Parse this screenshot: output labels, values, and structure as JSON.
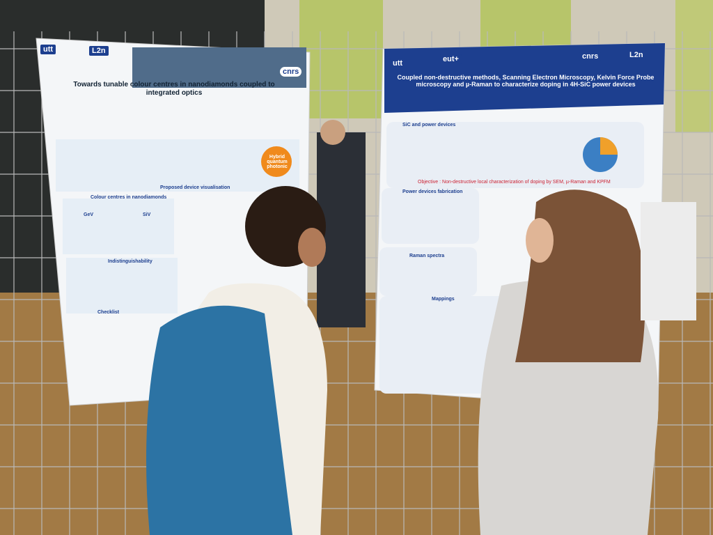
{
  "posters": [
    {
      "logos": [
        "utt",
        "L2n",
        "cnrs"
      ],
      "title": "Towards tunable colour centres in nanodiamonds coupled to integrated optics",
      "sections": [
        "Proposed device visualisation",
        "Hybrid quantum photonic",
        "Colour centres in nanodiamonds",
        "GeV",
        "SiV",
        "Indistinguishability",
        "Checklist"
      ]
    },
    {
      "logos": [
        "utt",
        "eut+",
        "cnrs",
        "L2n"
      ],
      "title": "Coupled non-destructive methods, Scanning Electron Microscopy, Kelvin Force Probe microscopy and µ-Raman to characterize doping in 4H-SiC power devices",
      "sections": [
        "SiC and power devices",
        "Power devices fabrication",
        "Raman spectra",
        "Mappings"
      ],
      "objective": "Objective : Non-destructive local characterization of doping by SEM, µ-Raman and KPFM"
    }
  ]
}
